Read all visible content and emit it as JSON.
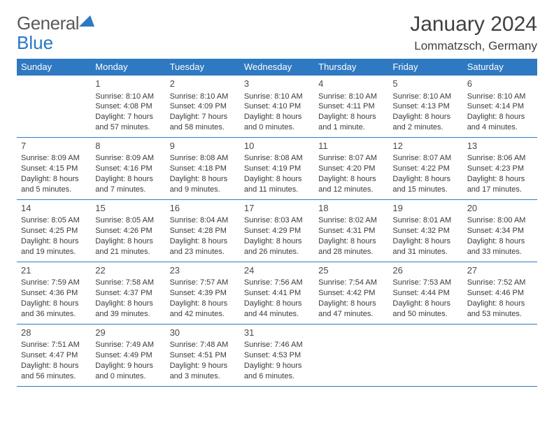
{
  "logo": {
    "text1": "General",
    "text2": "Blue"
  },
  "header": {
    "month_title": "January 2024",
    "location": "Lommatzsch, Germany"
  },
  "colors": {
    "accent": "#2e79c2",
    "text": "#3a3a3a",
    "bg": "#ffffff"
  },
  "calendar": {
    "day_headers": [
      "Sunday",
      "Monday",
      "Tuesday",
      "Wednesday",
      "Thursday",
      "Friday",
      "Saturday"
    ],
    "weeks": [
      [
        null,
        {
          "n": "1",
          "sr": "Sunrise: 8:10 AM",
          "ss": "Sunset: 4:08 PM",
          "dl": "Daylight: 7 hours and 57 minutes."
        },
        {
          "n": "2",
          "sr": "Sunrise: 8:10 AM",
          "ss": "Sunset: 4:09 PM",
          "dl": "Daylight: 7 hours and 58 minutes."
        },
        {
          "n": "3",
          "sr": "Sunrise: 8:10 AM",
          "ss": "Sunset: 4:10 PM",
          "dl": "Daylight: 8 hours and 0 minutes."
        },
        {
          "n": "4",
          "sr": "Sunrise: 8:10 AM",
          "ss": "Sunset: 4:11 PM",
          "dl": "Daylight: 8 hours and 1 minute."
        },
        {
          "n": "5",
          "sr": "Sunrise: 8:10 AM",
          "ss": "Sunset: 4:13 PM",
          "dl": "Daylight: 8 hours and 2 minutes."
        },
        {
          "n": "6",
          "sr": "Sunrise: 8:10 AM",
          "ss": "Sunset: 4:14 PM",
          "dl": "Daylight: 8 hours and 4 minutes."
        }
      ],
      [
        {
          "n": "7",
          "sr": "Sunrise: 8:09 AM",
          "ss": "Sunset: 4:15 PM",
          "dl": "Daylight: 8 hours and 5 minutes."
        },
        {
          "n": "8",
          "sr": "Sunrise: 8:09 AM",
          "ss": "Sunset: 4:16 PM",
          "dl": "Daylight: 8 hours and 7 minutes."
        },
        {
          "n": "9",
          "sr": "Sunrise: 8:08 AM",
          "ss": "Sunset: 4:18 PM",
          "dl": "Daylight: 8 hours and 9 minutes."
        },
        {
          "n": "10",
          "sr": "Sunrise: 8:08 AM",
          "ss": "Sunset: 4:19 PM",
          "dl": "Daylight: 8 hours and 11 minutes."
        },
        {
          "n": "11",
          "sr": "Sunrise: 8:07 AM",
          "ss": "Sunset: 4:20 PM",
          "dl": "Daylight: 8 hours and 12 minutes."
        },
        {
          "n": "12",
          "sr": "Sunrise: 8:07 AM",
          "ss": "Sunset: 4:22 PM",
          "dl": "Daylight: 8 hours and 15 minutes."
        },
        {
          "n": "13",
          "sr": "Sunrise: 8:06 AM",
          "ss": "Sunset: 4:23 PM",
          "dl": "Daylight: 8 hours and 17 minutes."
        }
      ],
      [
        {
          "n": "14",
          "sr": "Sunrise: 8:05 AM",
          "ss": "Sunset: 4:25 PM",
          "dl": "Daylight: 8 hours and 19 minutes."
        },
        {
          "n": "15",
          "sr": "Sunrise: 8:05 AM",
          "ss": "Sunset: 4:26 PM",
          "dl": "Daylight: 8 hours and 21 minutes."
        },
        {
          "n": "16",
          "sr": "Sunrise: 8:04 AM",
          "ss": "Sunset: 4:28 PM",
          "dl": "Daylight: 8 hours and 23 minutes."
        },
        {
          "n": "17",
          "sr": "Sunrise: 8:03 AM",
          "ss": "Sunset: 4:29 PM",
          "dl": "Daylight: 8 hours and 26 minutes."
        },
        {
          "n": "18",
          "sr": "Sunrise: 8:02 AM",
          "ss": "Sunset: 4:31 PM",
          "dl": "Daylight: 8 hours and 28 minutes."
        },
        {
          "n": "19",
          "sr": "Sunrise: 8:01 AM",
          "ss": "Sunset: 4:32 PM",
          "dl": "Daylight: 8 hours and 31 minutes."
        },
        {
          "n": "20",
          "sr": "Sunrise: 8:00 AM",
          "ss": "Sunset: 4:34 PM",
          "dl": "Daylight: 8 hours and 33 minutes."
        }
      ],
      [
        {
          "n": "21",
          "sr": "Sunrise: 7:59 AM",
          "ss": "Sunset: 4:36 PM",
          "dl": "Daylight: 8 hours and 36 minutes."
        },
        {
          "n": "22",
          "sr": "Sunrise: 7:58 AM",
          "ss": "Sunset: 4:37 PM",
          "dl": "Daylight: 8 hours and 39 minutes."
        },
        {
          "n": "23",
          "sr": "Sunrise: 7:57 AM",
          "ss": "Sunset: 4:39 PM",
          "dl": "Daylight: 8 hours and 42 minutes."
        },
        {
          "n": "24",
          "sr": "Sunrise: 7:56 AM",
          "ss": "Sunset: 4:41 PM",
          "dl": "Daylight: 8 hours and 44 minutes."
        },
        {
          "n": "25",
          "sr": "Sunrise: 7:54 AM",
          "ss": "Sunset: 4:42 PM",
          "dl": "Daylight: 8 hours and 47 minutes."
        },
        {
          "n": "26",
          "sr": "Sunrise: 7:53 AM",
          "ss": "Sunset: 4:44 PM",
          "dl": "Daylight: 8 hours and 50 minutes."
        },
        {
          "n": "27",
          "sr": "Sunrise: 7:52 AM",
          "ss": "Sunset: 4:46 PM",
          "dl": "Daylight: 8 hours and 53 minutes."
        }
      ],
      [
        {
          "n": "28",
          "sr": "Sunrise: 7:51 AM",
          "ss": "Sunset: 4:47 PM",
          "dl": "Daylight: 8 hours and 56 minutes."
        },
        {
          "n": "29",
          "sr": "Sunrise: 7:49 AM",
          "ss": "Sunset: 4:49 PM",
          "dl": "Daylight: 9 hours and 0 minutes."
        },
        {
          "n": "30",
          "sr": "Sunrise: 7:48 AM",
          "ss": "Sunset: 4:51 PM",
          "dl": "Daylight: 9 hours and 3 minutes."
        },
        {
          "n": "31",
          "sr": "Sunrise: 7:46 AM",
          "ss": "Sunset: 4:53 PM",
          "dl": "Daylight: 9 hours and 6 minutes."
        },
        null,
        null,
        null
      ]
    ]
  }
}
